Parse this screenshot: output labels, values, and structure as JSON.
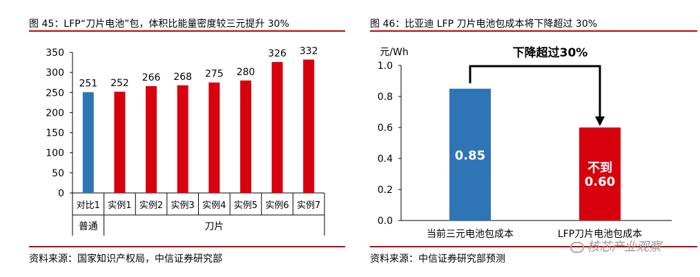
{
  "left_panel": {
    "title": "图 45：LFP“刀片电池”包，体积比能量密度较三元提升 30%",
    "source": "资料来源：国家知识产权局，中信证券研究部"
  },
  "right_panel": {
    "title": "图 46：比亚迪 LFP 刀片电池包成本将下降超过 30%",
    "source": "资料来源：中信证券研究部预测"
  },
  "watermark": {
    "text": "核芯产业观察",
    "icon": "wechat-icon"
  },
  "chart_data": [
    {
      "type": "bar",
      "categories": [
        "对比1",
        "实例1",
        "实例2",
        "实例3",
        "实例4",
        "实例5",
        "实例6",
        "实例7"
      ],
      "values": [
        251,
        252,
        266,
        268,
        275,
        280,
        326,
        332
      ],
      "bar_colors": [
        "#2e75b6",
        "#d9000d",
        "#d9000d",
        "#d9000d",
        "#d9000d",
        "#d9000d",
        "#d9000d",
        "#d9000d"
      ],
      "groups": [
        {
          "label": "普通",
          "span": [
            0,
            0
          ]
        },
        {
          "label": "刀片",
          "span": [
            1,
            7
          ]
        }
      ],
      "ylim": [
        0,
        350
      ],
      "yticks": [
        0,
        50,
        100,
        150,
        200,
        250,
        300,
        350
      ],
      "grid": false,
      "data_labels": [
        "251",
        "252",
        "266",
        "268",
        "275",
        "280",
        "326",
        "332"
      ]
    },
    {
      "type": "bar",
      "categories": [
        "当前三元电池包成本",
        "LFP刀片电池包成本"
      ],
      "values": [
        0.85,
        0.6
      ],
      "bar_colors": [
        "#2e75b6",
        "#d9000d"
      ],
      "data_labels": [
        "0.85",
        "不到\n0.60"
      ],
      "ylabel": "元/Wh",
      "ylim": [
        0,
        1.0
      ],
      "yticks": [
        "0.0",
        "0.2",
        "0.4",
        "0.6",
        "0.8",
        "1.0"
      ],
      "annotation": "下降超过30%",
      "grid": false
    }
  ]
}
